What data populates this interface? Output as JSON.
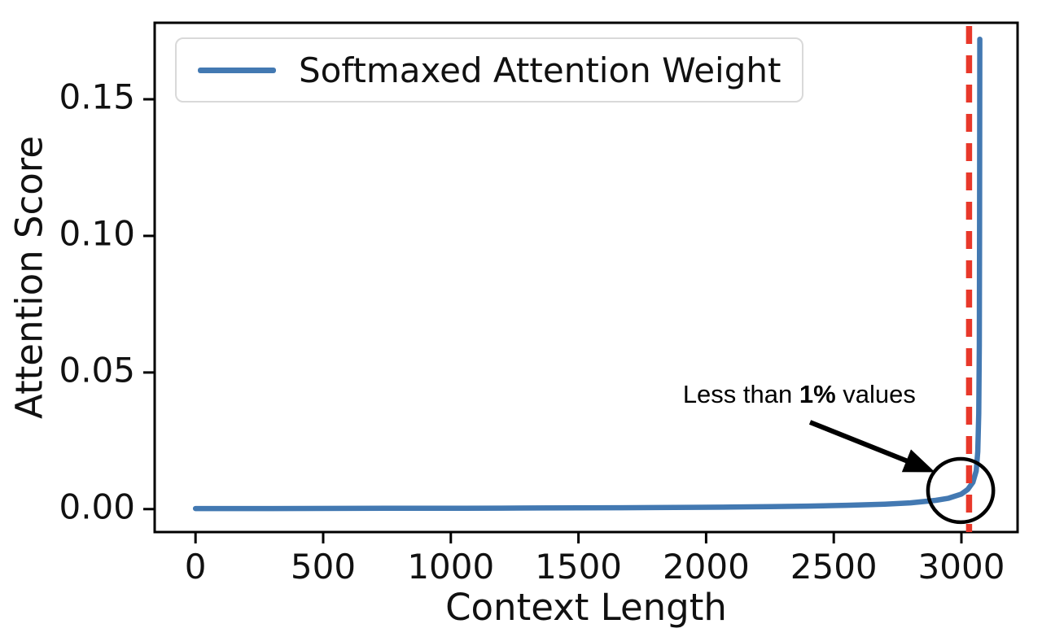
{
  "chart_data": {
    "type": "line",
    "title": "",
    "xlabel": "Context Length",
    "ylabel": "Attention Score",
    "xlim": [
      -160,
      3220
    ],
    "ylim": [
      -0.0084,
      0.178
    ],
    "xticks": [
      0,
      500,
      1000,
      1500,
      2000,
      2500,
      3000
    ],
    "yticks": [
      0,
      0.05,
      0.1,
      0.15
    ],
    "ytick_labels": [
      "0.00",
      "0.05",
      "0.10",
      "0.15"
    ],
    "grid": false,
    "legend": {
      "position": "upper left",
      "entries": [
        {
          "label": "Softmaxed Attention Weight",
          "color": "#4379b2"
        }
      ]
    },
    "series": [
      {
        "name": "Softmaxed Attention Weight",
        "color": "#4379b2",
        "points": [
          [
            0,
            0.0002
          ],
          [
            150,
            0.0002
          ],
          [
            300,
            0.00022
          ],
          [
            450,
            0.00024
          ],
          [
            600,
            0.00026
          ],
          [
            750,
            0.00028
          ],
          [
            900,
            0.0003
          ],
          [
            1050,
            0.00032
          ],
          [
            1200,
            0.00035
          ],
          [
            1350,
            0.0004
          ],
          [
            1500,
            0.00045
          ],
          [
            1650,
            0.0005
          ],
          [
            1800,
            0.00055
          ],
          [
            1950,
            0.00065
          ],
          [
            2100,
            0.00075
          ],
          [
            2250,
            0.0009
          ],
          [
            2400,
            0.0011
          ],
          [
            2550,
            0.0014
          ],
          [
            2700,
            0.0018
          ],
          [
            2800,
            0.0023
          ],
          [
            2900,
            0.0032
          ],
          [
            2950,
            0.004
          ],
          [
            3000,
            0.0055
          ],
          [
            3025,
            0.0072
          ],
          [
            3045,
            0.0098
          ],
          [
            3058,
            0.014
          ],
          [
            3064,
            0.021
          ],
          [
            3068,
            0.035
          ],
          [
            3070,
            0.06
          ],
          [
            3071,
            0.1
          ],
          [
            3072,
            0.172
          ]
        ]
      }
    ],
    "vline": {
      "x": 3030,
      "color": "#e8382a",
      "style": "dashed"
    },
    "annotation": {
      "text_prefix": "Less than ",
      "text_bold": "1%",
      "text_suffix": " values",
      "text_center": [
        2365,
        0.042
      ],
      "arrow_from": [
        2407,
        0.0318
      ],
      "arrow_to": [
        2897,
        0.0135
      ],
      "circle_center": [
        2997,
        0.0068
      ],
      "circle_rx": 128,
      "circle_ry": 0.0116,
      "color": "#000000"
    },
    "spine_color": "#000000",
    "tick_label_color": "#111111"
  }
}
